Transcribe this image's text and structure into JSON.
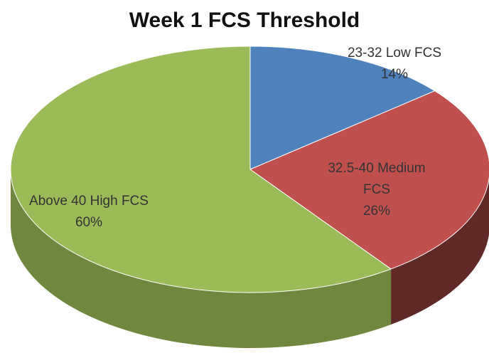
{
  "chart_data": {
    "type": "pie3d",
    "title": "Week 1 FCS Threshold",
    "categories": [
      "23-32 Low FCS",
      "32.5-40 Medium FCS",
      "Above 40 High FCS"
    ],
    "values": [
      14,
      26,
      60
    ],
    "value_labels": [
      "14%",
      "26%",
      "60%"
    ],
    "colors": [
      "#4f81bd",
      "#c0504d",
      "#9bbb59"
    ]
  }
}
